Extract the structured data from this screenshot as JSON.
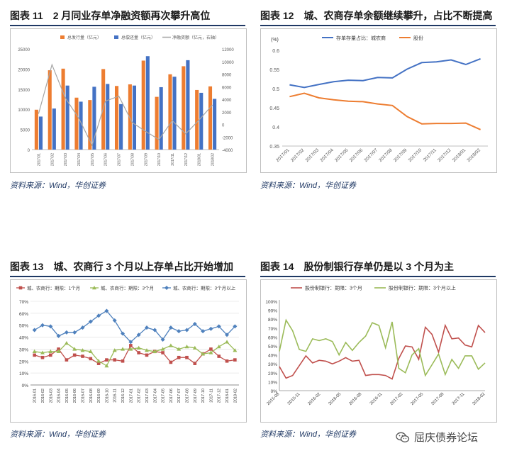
{
  "panels": [
    {
      "title": "图表 11　2 月同业存单净融资额再次攀升高位",
      "source": "资料来源：Wind，华创证券",
      "chart_data": {
        "type": "bar",
        "categories": [
          "2017/01",
          "2017/02",
          "2017/03",
          "2017/04",
          "2017/05",
          "2017/06",
          "2017/07",
          "2017/08",
          "2017/09",
          "2017/10",
          "2017/11",
          "2017/12",
          "2018/01",
          "2018/02"
        ],
        "series": [
          {
            "name": "总发行量（亿元）",
            "type": "bar",
            "axis": "left",
            "color": "#ed7d31",
            "values": [
              9900,
              19700,
              20100,
              12900,
              12300,
              20000,
              15800,
              16200,
              22100,
              13100,
              18700,
              20700,
              14800,
              15700
            ]
          },
          {
            "name": "总偿还量（亿元）",
            "type": "bar",
            "axis": "left",
            "color": "#4472c4",
            "values": [
              8200,
              10200,
              15900,
              11900,
              15600,
              16300,
              11300,
              15900,
              23200,
              15500,
              18100,
              22200,
              14100,
              12600
            ]
          },
          {
            "name": "净融资额（亿元，右轴）",
            "type": "line",
            "axis": "right",
            "color": "#a5a5a5",
            "values": [
              1700,
              9500,
              4200,
              1000,
              -3300,
              3700,
              4500,
              300,
              -1100,
              -2400,
              600,
              -1500,
              700,
              3100
            ]
          }
        ],
        "ylim": [
          0,
          25000
        ],
        "yticks": [
          0,
          5000,
          10000,
          15000,
          20000,
          25000
        ],
        "y2lim": [
          -4000,
          12000
        ],
        "y2ticks": [
          -4000,
          -2000,
          0,
          2000,
          4000,
          6000,
          8000,
          10000,
          12000
        ],
        "legend": "top"
      }
    },
    {
      "title": "图表 12　城、农商存单余额继续攀升，占比不断提高",
      "source": "资料来源：Wind，华创证券",
      "chart_data": {
        "type": "line",
        "unit": "(%)",
        "categories": [
          "2017/01",
          "2017/02",
          "2017/03",
          "2017/04",
          "2017/05",
          "2017/06",
          "2017/07",
          "2017/08",
          "2017/09",
          "2017/10",
          "2017/11",
          "2017/12",
          "2018/01",
          "2018/02"
        ],
        "series": [
          {
            "name": "存单存量占比：城农商",
            "color": "#4472c4",
            "values": [
              0.51,
              0.503,
              0.511,
              0.518,
              0.522,
              0.521,
              0.529,
              0.528,
              0.551,
              0.568,
              0.57,
              0.575,
              0.563,
              0.578
            ]
          },
          {
            "name": "股份",
            "color": "#ed7d31",
            "values": [
              0.479,
              0.488,
              0.476,
              0.471,
              0.467,
              0.466,
              0.46,
              0.456,
              0.427,
              0.408,
              0.409,
              0.409,
              0.41,
              0.393
            ]
          }
        ],
        "ylim": [
          0.35,
          0.6
        ],
        "yticks": [
          0.35,
          0.4,
          0.45,
          0.5,
          0.55,
          0.6
        ],
        "legend": "top"
      }
    },
    {
      "title": "图表 13　城、农商行 3 个月以上存单占比开始增加",
      "source": "资料来源：Wind，华创证券",
      "chart_data": {
        "type": "line",
        "categories": [
          "2016-01",
          "2016-02",
          "2016-03",
          "2016-04",
          "2016-05",
          "2016-06",
          "2016-07",
          "2016-08",
          "2016-09",
          "2016-10",
          "2016-11",
          "2016-12",
          "2017-01",
          "2017-02",
          "2017-03",
          "2017-04",
          "2017-05",
          "2017-06",
          "2017-07",
          "2017-08",
          "2017-09",
          "2017-10",
          "2017-11",
          "2017-12",
          "2018-01",
          "2018-02"
        ],
        "series": [
          {
            "name": "城、农商行：期限：1个月",
            "color": "#c0504d",
            "marker": "square",
            "values": [
              25,
              23,
              25,
              30,
              21,
              25,
              24,
              22,
              18,
              21,
              21,
              20,
              33,
              27,
              25,
              28,
              27,
              19,
              23,
              23,
              18,
              26,
              30,
              24,
              20,
              21
            ]
          },
          {
            "name": "城、农商行：期限：3个月",
            "color": "#9bbb59",
            "marker": "triangle",
            "values": [
              28,
              27,
              28,
              28,
              35,
              30,
              29,
              28,
              20,
              16,
              29,
              30,
              30,
              31,
              29,
              28,
              30,
              33,
              30,
              32,
              31,
              26,
              27,
              32,
              36,
              29
            ]
          },
          {
            "name": "城、农商行：期限：3个月以上",
            "color": "#4f81bd",
            "marker": "diamond",
            "values": [
              46,
              50,
              49,
              41,
              44,
              44,
              48,
              53,
              58,
              62,
              54,
              43,
              36,
              42,
              48,
              46,
              38,
              48,
              45,
              46,
              51,
              45,
              47,
              49,
              42,
              49
            ]
          }
        ],
        "ylim": [
          0,
          70
        ],
        "yticks": [
          0,
          10,
          20,
          30,
          40,
          50,
          60,
          70
        ],
        "xticks": [
          "2016-01",
          "2016-02",
          "2016-03",
          "2016-04",
          "2016-05",
          "2016-06",
          "2016-07",
          "2016-08",
          "2016-09",
          "2016-10",
          "2016-11",
          "2016-12",
          "2017-01",
          "2017-02",
          "2017-03",
          "2017-04",
          "2017-05",
          "2017-06",
          "2017-07",
          "2017-08",
          "2017-09",
          "2017-10",
          "2017-11",
          "2017-12",
          "2018-01",
          "2018-02"
        ],
        "legend": "top"
      }
    },
    {
      "title": "图表 14　股份制银行存单仍是以 3 个月为主",
      "source": "资料来源：Wind，华创证券",
      "chart_data": {
        "type": "line",
        "x_range": [
          "2015-08",
          "2018-02"
        ],
        "series": [
          {
            "name": "股份制银行：期限：3个月",
            "color": "#c0504d",
            "values": [
              27,
              14,
              17,
              28,
              39,
              31,
              34,
              33,
              30,
              33,
              37,
              33,
              34,
              17,
              18,
              18,
              17,
              13,
              36,
              50,
              49,
              35,
              71,
              63,
              43,
              73,
              58,
              59,
              51,
              49,
              73,
              65
            ]
          },
          {
            "name": "股份制银行：期限：3个月以上",
            "color": "#9bbb59",
            "values": [
              44,
              79,
              67,
              46,
              44,
              58,
              56,
              58,
              55,
              40,
              54,
              45,
              54,
              61,
              76,
              73,
              48,
              77,
              25,
              20,
              40,
              47,
              17,
              29,
              41,
              18,
              35,
              25,
              39,
              39,
              24,
              31
            ]
          }
        ],
        "ylim": [
          0,
          100
        ],
        "yticks": [
          0,
          10,
          20,
          30,
          40,
          50,
          60,
          70,
          80,
          90,
          100
        ],
        "xticks": [
          "2015-08",
          "2015-11",
          "2016-02",
          "2016-05",
          "2016-08",
          "2016-11",
          "2017-02",
          "2017-05",
          "2017-08",
          "2017-11",
          "2018-02"
        ],
        "legend": "top"
      }
    }
  ],
  "watermark": {
    "text": "屈庆债券论坛",
    "icon": "wechat-icon"
  }
}
